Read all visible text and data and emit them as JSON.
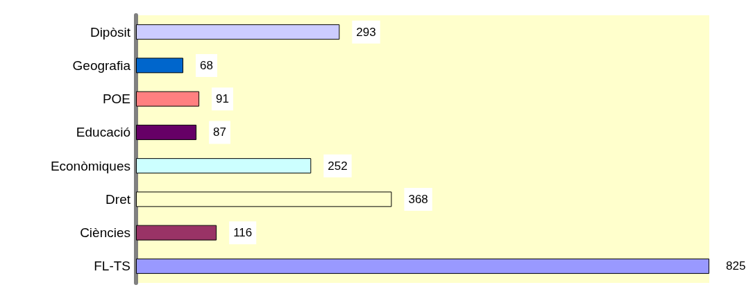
{
  "chart_data": {
    "type": "bar",
    "orientation": "horizontal",
    "categories": [
      "Dipòsit",
      "Geografia",
      "POE",
      "Educació",
      "Econòmiques",
      "Dret",
      "Ciències",
      "FL-TS"
    ],
    "values": [
      293,
      68,
      91,
      87,
      252,
      368,
      116,
      825
    ],
    "colors": [
      "#ccccff",
      "#0066cc",
      "#ff8080",
      "#660066",
      "#ccffff",
      "#ffffcc",
      "#993366",
      "#9999ff"
    ],
    "data_labels": true,
    "tick_labels": "y",
    "grid": false
  }
}
